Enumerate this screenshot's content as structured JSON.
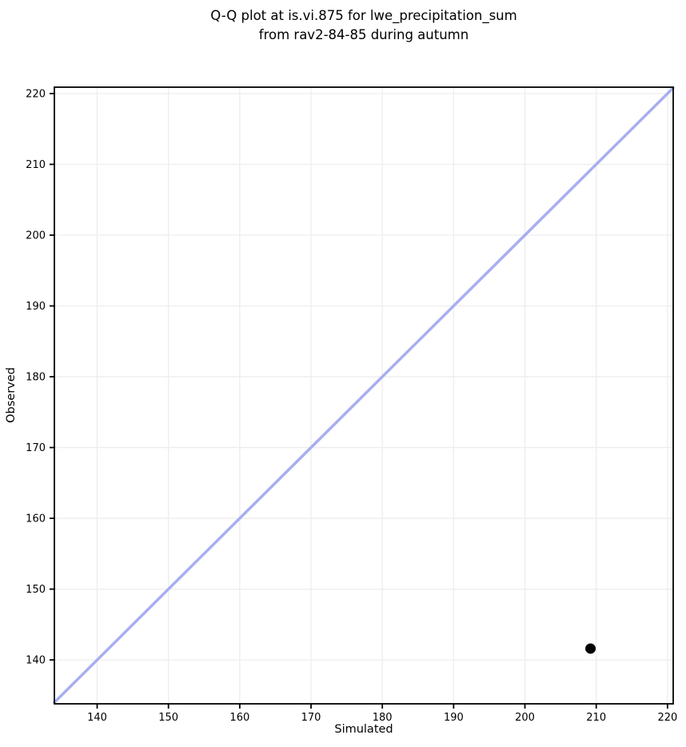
{
  "chart_data": {
    "type": "scatter",
    "title": "Q-Q plot at is.vi.875 for lwe_precipitation_sum\nfrom rav2-84-85 during autumn",
    "title_lines": [
      "Q-Q plot at is.vi.875 for lwe_precipitation_sum",
      "from rav2-84-85 during autumn"
    ],
    "xlabel": "Simulated",
    "ylabel": "Observed",
    "xlim": [
      134.0,
      220.8
    ],
    "ylim": [
      133.8,
      220.9
    ],
    "xticks": [
      140,
      150,
      160,
      170,
      180,
      190,
      200,
      210,
      220
    ],
    "yticks": [
      140,
      150,
      160,
      170,
      180,
      190,
      200,
      210,
      220
    ],
    "grid": true,
    "legend": "none",
    "points": [
      {
        "x": 209.2,
        "y": 141.6
      }
    ],
    "identity_line": {
      "x1": 134.0,
      "y1": 134.0,
      "x2": 220.8,
      "y2": 220.8
    },
    "colors": {
      "point": "#000000",
      "identity_line": "#a8aef0",
      "grid": "#ededed",
      "spine": "#000000",
      "tick": "#000000",
      "text": "#000000",
      "background": "#ffffff"
    },
    "style": {
      "line_width": 3.5,
      "point_radius": 6.5,
      "grid_width": 1.3,
      "spine_width": 1.8,
      "tick_length": 6,
      "tick_label_size": 13
    }
  }
}
